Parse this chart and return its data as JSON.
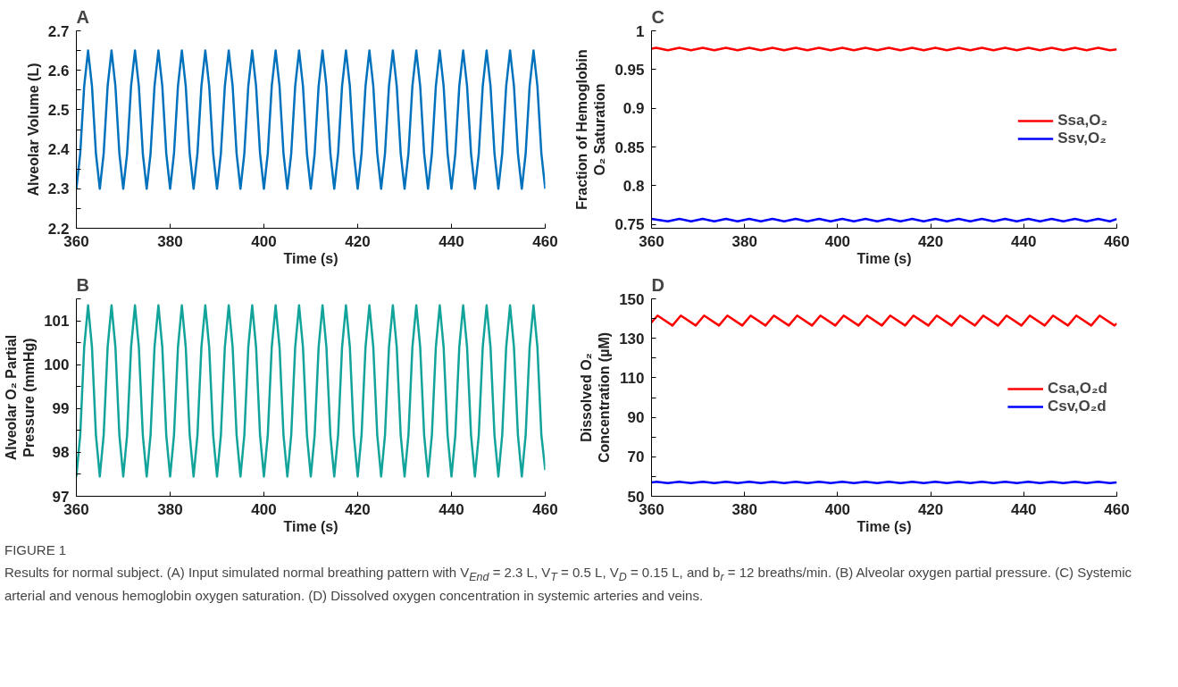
{
  "chart_data": [
    {
      "type": "line",
      "title": "A",
      "xlabel": "Time (s)",
      "ylabel": "Alveolar Volume (L)",
      "xlim": [
        360,
        460
      ],
      "xticks": [
        360,
        380,
        400,
        420,
        440,
        460
      ],
      "ylim": [
        2.2,
        2.7
      ],
      "yticks": [
        2.2,
        {
          "value": 2.25,
          "label": null
        },
        2.3,
        {
          "value": 2.35,
          "label": null
        },
        2.4,
        {
          "value": 2.45,
          "label": null
        },
        2.5,
        {
          "value": 2.55,
          "label": null
        },
        2.6,
        {
          "value": 2.65,
          "label": null
        },
        2.7
      ],
      "x": [
        360,
        360.83,
        361.67,
        362.5,
        363.33,
        364.17,
        365,
        365.83,
        366.67,
        367.5,
        368.33,
        369.17,
        370,
        370.83,
        371.67,
        372.5,
        373.33,
        374.17,
        375,
        375.83,
        376.67,
        377.5,
        378.33,
        379.17,
        380,
        380.83,
        381.67,
        382.5,
        383.33,
        384.17,
        385,
        385.83,
        386.67,
        387.5,
        388.33,
        389.17,
        390,
        390.83,
        391.67,
        392.5,
        393.33,
        394.17,
        395,
        395.83,
        396.67,
        397.5,
        398.33,
        399.17,
        400,
        400.83,
        401.67,
        402.5,
        403.33,
        404.17,
        405,
        405.83,
        406.67,
        407.5,
        408.33,
        409.17,
        410,
        410.83,
        411.67,
        412.5,
        413.33,
        414.17,
        415,
        415.83,
        416.67,
        417.5,
        418.33,
        419.17,
        420,
        420.83,
        421.67,
        422.5,
        423.33,
        424.17,
        425,
        425.83,
        426.67,
        427.5,
        428.33,
        429.17,
        430,
        430.83,
        431.67,
        432.5,
        433.33,
        434.17,
        435,
        435.83,
        436.67,
        437.5,
        438.33,
        439.17,
        440,
        440.83,
        441.67,
        442.5,
        443.33,
        444.17,
        445,
        445.83,
        446.67,
        447.5,
        448.33,
        449.17,
        450,
        450.83,
        451.67,
        452.5,
        453.33,
        454.17,
        455,
        455.83,
        456.67,
        457.5,
        458.33,
        459.17,
        460
      ],
      "series": [
        {
          "color": "#0072bd",
          "values": [
            2.3,
            2.39,
            2.56,
            2.65,
            2.56,
            2.39,
            2.3,
            2.39,
            2.56,
            2.65,
            2.56,
            2.39,
            2.3,
            2.39,
            2.56,
            2.65,
            2.56,
            2.39,
            2.3,
            2.39,
            2.56,
            2.65,
            2.56,
            2.39,
            2.3,
            2.39,
            2.56,
            2.65,
            2.56,
            2.39,
            2.3,
            2.39,
            2.56,
            2.65,
            2.56,
            2.39,
            2.3,
            2.39,
            2.56,
            2.65,
            2.56,
            2.39,
            2.3,
            2.39,
            2.56,
            2.65,
            2.56,
            2.39,
            2.3,
            2.39,
            2.56,
            2.65,
            2.56,
            2.39,
            2.3,
            2.39,
            2.56,
            2.65,
            2.56,
            2.39,
            2.3,
            2.39,
            2.56,
            2.65,
            2.56,
            2.39,
            2.3,
            2.39,
            2.56,
            2.65,
            2.56,
            2.39,
            2.3,
            2.39,
            2.56,
            2.65,
            2.56,
            2.39,
            2.3,
            2.39,
            2.56,
            2.65,
            2.56,
            2.39,
            2.3,
            2.39,
            2.56,
            2.65,
            2.56,
            2.39,
            2.3,
            2.39,
            2.56,
            2.65,
            2.56,
            2.39,
            2.3,
            2.39,
            2.56,
            2.65,
            2.56,
            2.39,
            2.3,
            2.39,
            2.56,
            2.65,
            2.56,
            2.39,
            2.3,
            2.39,
            2.56,
            2.65,
            2.56,
            2.39,
            2.3,
            2.39,
            2.56,
            2.65,
            2.56,
            2.39,
            2.3
          ]
        }
      ]
    },
    {
      "type": "line",
      "title": "B",
      "xlabel": "Time (s)",
      "ylabel": "Alveolar O₂ Partial\nPressure (mmHg)",
      "xlim": [
        360,
        460
      ],
      "xticks": [
        360,
        380,
        400,
        420,
        440,
        460
      ],
      "ylim": [
        97,
        101.5
      ],
      "yticks": [
        97,
        {
          "value": 97.5,
          "label": null
        },
        98,
        {
          "value": 98.5,
          "label": null
        },
        99,
        {
          "value": 99.5,
          "label": null
        },
        100,
        {
          "value": 100.5,
          "label": null
        },
        101,
        {
          "value": 101.5,
          "label": null
        }
      ],
      "x": [
        360,
        360.83,
        361.67,
        362.5,
        363.33,
        364.17,
        365,
        365.83,
        366.67,
        367.5,
        368.33,
        369.17,
        370,
        370.83,
        371.67,
        372.5,
        373.33,
        374.17,
        375,
        375.83,
        376.67,
        377.5,
        378.33,
        379.17,
        380,
        380.83,
        381.67,
        382.5,
        383.33,
        384.17,
        385,
        385.83,
        386.67,
        387.5,
        388.33,
        389.17,
        390,
        390.83,
        391.67,
        392.5,
        393.33,
        394.17,
        395,
        395.83,
        396.67,
        397.5,
        398.33,
        399.17,
        400,
        400.83,
        401.67,
        402.5,
        403.33,
        404.17,
        405,
        405.83,
        406.67,
        407.5,
        408.33,
        409.17,
        410,
        410.83,
        411.67,
        412.5,
        413.33,
        414.17,
        415,
        415.83,
        416.67,
        417.5,
        418.33,
        419.17,
        420,
        420.83,
        421.67,
        422.5,
        423.33,
        424.17,
        425,
        425.83,
        426.67,
        427.5,
        428.33,
        429.17,
        430,
        430.83,
        431.67,
        432.5,
        433.33,
        434.17,
        435,
        435.83,
        436.67,
        437.5,
        438.33,
        439.17,
        440,
        440.83,
        441.67,
        442.5,
        443.33,
        444.17,
        445,
        445.83,
        446.67,
        447.5,
        448.33,
        449.17,
        450,
        450.83,
        451.67,
        452.5,
        453.33,
        454.17,
        455,
        455.83,
        456.67,
        457.5,
        458.33,
        459.17,
        460
      ],
      "series": [
        {
          "color": "#12a39b",
          "values": [
            97.45,
            98.4,
            100.4,
            101.35,
            100.4,
            98.4,
            97.45,
            98.4,
            100.4,
            101.35,
            100.4,
            98.4,
            97.45,
            98.4,
            100.4,
            101.35,
            100.4,
            98.4,
            97.45,
            98.4,
            100.4,
            101.35,
            100.4,
            98.4,
            97.45,
            98.4,
            100.4,
            101.35,
            100.4,
            98.4,
            97.45,
            98.4,
            100.4,
            101.35,
            100.4,
            98.4,
            97.45,
            98.4,
            100.4,
            101.35,
            100.4,
            98.4,
            97.45,
            98.4,
            100.4,
            101.35,
            100.4,
            98.4,
            97.45,
            98.4,
            100.4,
            101.35,
            100.4,
            98.4,
            97.45,
            98.4,
            100.4,
            101.35,
            100.4,
            98.4,
            97.45,
            98.4,
            100.4,
            101.35,
            100.4,
            98.4,
            97.45,
            98.4,
            100.4,
            101.35,
            100.4,
            98.4,
            97.45,
            98.4,
            100.4,
            101.35,
            100.4,
            98.4,
            97.45,
            98.4,
            100.4,
            101.35,
            100.4,
            98.4,
            97.45,
            98.4,
            100.4,
            101.35,
            100.4,
            98.4,
            97.45,
            98.4,
            100.4,
            101.35,
            100.4,
            98.4,
            97.45,
            98.4,
            100.4,
            101.35,
            100.4,
            98.4,
            97.45,
            98.4,
            100.4,
            101.35,
            100.4,
            98.4,
            97.45,
            98.4,
            100.4,
            101.35,
            100.4,
            98.4,
            97.45,
            98.4,
            100.4,
            101.35,
            100.4,
            98.4,
            97.6
          ]
        }
      ]
    },
    {
      "type": "line",
      "title": "C",
      "xlabel": "Time (s)",
      "ylabel": "Fraction of Hemoglobin\nO₂ Saturation",
      "xlim": [
        360,
        460
      ],
      "xticks": [
        360,
        380,
        400,
        420,
        440,
        460
      ],
      "ylim": [
        0.745,
        1
      ],
      "yticks": [
        0.75,
        0.8,
        0.85,
        0.9,
        0.95,
        1
      ],
      "legend": "right",
      "series": [
        {
          "name": "Ssa,O₂",
          "color": "#ff0000",
          "x": [
            360,
            361,
            363.5,
            366,
            368.5,
            371,
            373.5,
            376,
            378.5,
            381,
            383.5,
            386,
            388.5,
            391,
            393.5,
            396,
            398.5,
            401,
            403.5,
            406,
            408.5,
            411,
            413.5,
            416,
            418.5,
            421,
            423.5,
            426,
            428.5,
            431,
            433.5,
            436,
            438.5,
            441,
            443.5,
            446,
            448.5,
            451,
            453.5,
            456,
            458.5,
            460
          ],
          "values": [
            0.977,
            0.978,
            0.975,
            0.978,
            0.975,
            0.978,
            0.975,
            0.978,
            0.975,
            0.978,
            0.975,
            0.978,
            0.975,
            0.978,
            0.975,
            0.978,
            0.975,
            0.978,
            0.975,
            0.978,
            0.975,
            0.978,
            0.975,
            0.978,
            0.975,
            0.978,
            0.975,
            0.978,
            0.975,
            0.978,
            0.975,
            0.978,
            0.975,
            0.978,
            0.975,
            0.978,
            0.975,
            0.978,
            0.975,
            0.978,
            0.975,
            0.976
          ]
        },
        {
          "name": "Ssv,O₂",
          "color": "#0000ff",
          "x": [
            360,
            363.5,
            366,
            368.5,
            371,
            373.5,
            376,
            378.5,
            381,
            383.5,
            386,
            388.5,
            391,
            393.5,
            396,
            398.5,
            401,
            403.5,
            406,
            408.5,
            411,
            413.5,
            416,
            418.5,
            421,
            423.5,
            426,
            428.5,
            431,
            433.5,
            436,
            438.5,
            441,
            443.5,
            446,
            448.5,
            451,
            453.5,
            456,
            458.5,
            460
          ],
          "values": [
            0.757,
            0.754,
            0.757,
            0.754,
            0.757,
            0.754,
            0.757,
            0.754,
            0.757,
            0.754,
            0.757,
            0.754,
            0.757,
            0.754,
            0.757,
            0.754,
            0.757,
            0.754,
            0.757,
            0.754,
            0.757,
            0.754,
            0.757,
            0.754,
            0.757,
            0.754,
            0.757,
            0.754,
            0.757,
            0.754,
            0.757,
            0.754,
            0.757,
            0.754,
            0.757,
            0.754,
            0.757,
            0.754,
            0.757,
            0.754,
            0.757
          ]
        }
      ]
    },
    {
      "type": "line",
      "title": "D",
      "xlabel": "Time (s)",
      "ylabel": "Dissolved O₂\nConcentration (µM)",
      "xlim": [
        360,
        460
      ],
      "xticks": [
        360,
        380,
        400,
        420,
        440,
        460
      ],
      "ylim": [
        50,
        150
      ],
      "yticks": [
        50,
        {
          "value": 60,
          "label": null
        },
        70,
        {
          "value": 80,
          "label": null
        },
        90,
        {
          "value": 100,
          "label": null
        },
        110,
        {
          "value": 120,
          "label": null
        },
        130,
        {
          "value": 140,
          "label": null
        },
        150
      ],
      "legend": "right",
      "series": [
        {
          "name": "Csa,O₂d",
          "color": "#ff0000",
          "x": [
            360,
            361.3,
            364.5,
            366.3,
            369.5,
            371.3,
            374.5,
            376.3,
            379.5,
            381.3,
            384.5,
            386.3,
            389.5,
            391.3,
            394.5,
            396.3,
            399.5,
            401.3,
            404.5,
            406.3,
            409.5,
            411.3,
            414.5,
            416.3,
            419.5,
            421.3,
            424.5,
            426.3,
            429.5,
            431.3,
            434.5,
            436.3,
            439.5,
            441.3,
            444.5,
            446.3,
            449.5,
            451.3,
            454.5,
            456.3,
            459.5,
            460
          ],
          "values": [
            138,
            141.5,
            136.5,
            141.5,
            136.5,
            141.5,
            136.5,
            141.5,
            136.5,
            141.5,
            136.5,
            141.5,
            136.5,
            141.5,
            136.5,
            141.5,
            136.5,
            141.5,
            136.5,
            141.5,
            136.5,
            141.5,
            136.5,
            141.5,
            136.5,
            141.5,
            136.5,
            141.5,
            136.5,
            141.5,
            136.5,
            141.5,
            136.5,
            141.5,
            136.5,
            141.5,
            136.5,
            141.5,
            136.5,
            141.5,
            136.5,
            137.5
          ]
        },
        {
          "name": "Csv,O₂d",
          "color": "#0000ff",
          "x": [
            360,
            361,
            363.5,
            366,
            368.5,
            371,
            373.5,
            376,
            378.5,
            381,
            383.5,
            386,
            388.5,
            391,
            393.5,
            396,
            398.5,
            401,
            403.5,
            406,
            408.5,
            411,
            413.5,
            416,
            418.5,
            421,
            423.5,
            426,
            428.5,
            431,
            433.5,
            436,
            438.5,
            441,
            443.5,
            446,
            448.5,
            451,
            453.5,
            456,
            458.5,
            460
          ],
          "values": [
            57,
            57.3,
            56.7,
            57.3,
            56.7,
            57.3,
            56.7,
            57.3,
            56.7,
            57.3,
            56.7,
            57.3,
            56.7,
            57.3,
            56.7,
            57.3,
            56.7,
            57.3,
            56.7,
            57.3,
            56.7,
            57.3,
            56.7,
            57.3,
            56.7,
            57.3,
            56.7,
            57.3,
            56.7,
            57.3,
            56.7,
            57.3,
            56.7,
            57.3,
            56.7,
            57.3,
            56.7,
            57.3,
            56.7,
            57.3,
            56.7,
            57
          ]
        }
      ],
      "annotations": [
        "FIGURE 1",
        "Results for normal subject. (A) Input simulated normal breathing pattern with V$_{End}$ = 2.3 L, V$_{T}$ = 0.5 L, V$_{D}$ = 0.15 L, and b$_{r}$ = 12 breaths/min. (B) Alveolar oxygen partial pressure. (C) Systemic arterial and venous hemoglobin oxygen saturation. (D) Dissolved oxygen concentration in systemic arteries and veins."
      ]
    }
  ]
}
